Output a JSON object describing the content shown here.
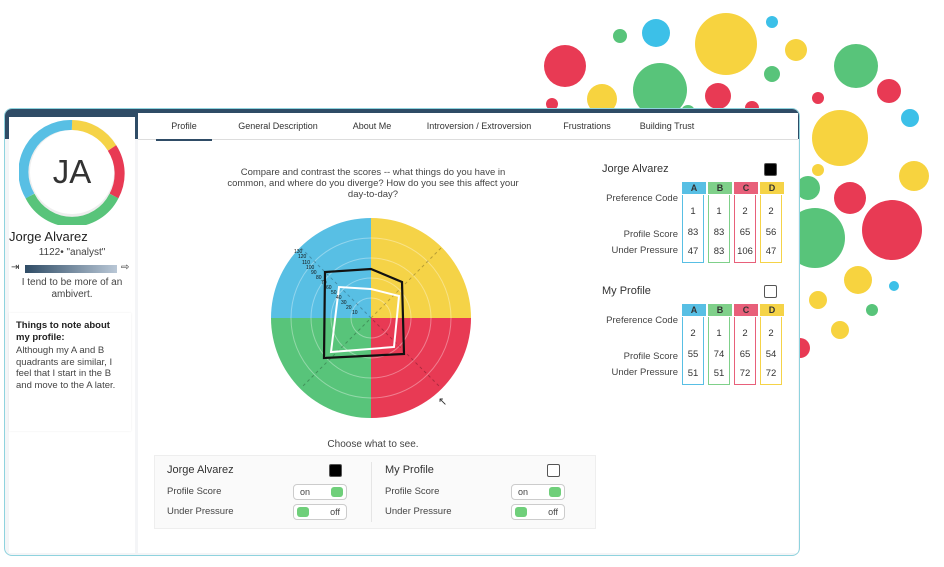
{
  "user": {
    "initials": "JA",
    "name": "Jorge Alvarez",
    "tag": "1122• \"analyst\"",
    "ambivert_text": "I tend to be more of an ambivert.",
    "notes_title": "Things to note about my profile:",
    "notes_body": "Although my A and B quadrants are similar, I feel that I start in the B and move to the A later."
  },
  "tabs": [
    "Profile",
    "General Description",
    "About Me",
    "Introversion / Extroversion",
    "Frustrations",
    "Building Trust"
  ],
  "active_tab": "Profile",
  "prompt": "Compare and contrast the scores -- what things do you have in common, and where do you diverge? How do you see this affect your day-to-day?",
  "radar": {
    "quadrant_colors": {
      "A": "#f5d347",
      "B": "#58bfe4",
      "C": "#e83a54",
      "D": "#58c47a"
    },
    "scale_labels": [
      "130",
      "120",
      "110",
      "100",
      "90",
      "80",
      "70",
      "60",
      "50",
      "40",
      "30",
      "20",
      "10"
    ]
  },
  "choose_label": "Choose what to see.",
  "toggles": {
    "left": {
      "name": "Jorge Alvarez",
      "profile_label": "Profile Score",
      "profile_state": "on",
      "pressure_label": "Under Pressure",
      "pressure_state": "off"
    },
    "right": {
      "name": "My Profile",
      "profile_label": "Profile Score",
      "profile_state": "on",
      "pressure_label": "Under Pressure",
      "pressure_state": "off"
    }
  },
  "score_tables": [
    {
      "name": "Jorge Alvarez",
      "checked": true,
      "rows": [
        "Preference Code",
        "Profile Score",
        "Under Pressure"
      ],
      "columns": [
        "A",
        "B",
        "C",
        "D"
      ],
      "values": [
        [
          1,
          1,
          2,
          2
        ],
        [
          83,
          83,
          65,
          56
        ],
        [
          47,
          83,
          106,
          47
        ]
      ]
    },
    {
      "name": "My Profile",
      "checked": false,
      "rows": [
        "Preference Code",
        "Profile Score",
        "Under Pressure"
      ],
      "columns": [
        "A",
        "B",
        "C",
        "D"
      ],
      "values": [
        [
          2,
          1,
          2,
          2
        ],
        [
          55,
          74,
          65,
          54
        ],
        [
          51,
          51,
          72,
          72
        ]
      ]
    }
  ],
  "column_colors": {
    "A": "#58bfe4",
    "B": "#7fd08a",
    "C": "#e8607a",
    "D": "#f5d347"
  }
}
